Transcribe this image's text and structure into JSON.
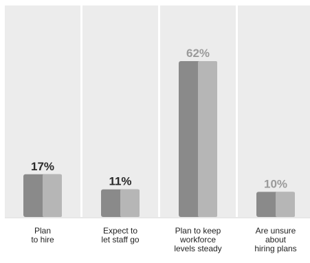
{
  "chart_data": {
    "type": "bar",
    "categories": [
      [
        "Plan",
        "to hire"
      ],
      [
        "Expect to",
        "let staff go"
      ],
      [
        "Plan to keep",
        "workforce",
        "levels steady"
      ],
      [
        "Are unsure",
        "about",
        "hiring plans"
      ]
    ],
    "values": [
      17,
      11,
      62,
      10
    ],
    "value_labels": [
      "17%",
      "11%",
      "62%",
      "10%"
    ],
    "ylim": [
      0,
      100
    ],
    "grid": false,
    "colors": {
      "panel": "#ececec",
      "bar_dark": "#8a8a8a",
      "bar_light": "#b6b6b6",
      "label_dark": "#2a2a2a",
      "label_light": "#9a9a9a",
      "baseline": "#cfcfcf"
    }
  }
}
